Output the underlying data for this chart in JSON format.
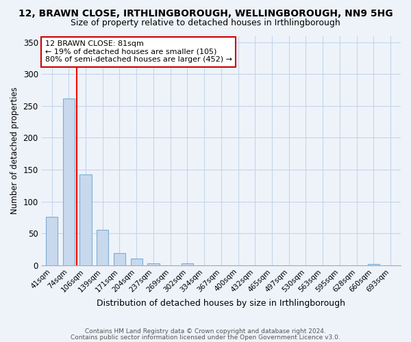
{
  "title_line1": "12, BRAWN CLOSE, IRTHLINGBOROUGH, WELLINGBOROUGH, NN9 5HG",
  "title_line2": "Size of property relative to detached houses in Irthlingborough",
  "xlabel": "Distribution of detached houses by size in Irthlingborough",
  "ylabel": "Number of detached properties",
  "bar_labels": [
    "41sqm",
    "74sqm",
    "106sqm",
    "139sqm",
    "171sqm",
    "204sqm",
    "237sqm",
    "269sqm",
    "302sqm",
    "334sqm",
    "367sqm",
    "400sqm",
    "432sqm",
    "465sqm",
    "497sqm",
    "530sqm",
    "563sqm",
    "595sqm",
    "628sqm",
    "660sqm",
    "693sqm"
  ],
  "bar_values": [
    76,
    262,
    143,
    55,
    19,
    10,
    3,
    0,
    3,
    0,
    0,
    0,
    0,
    0,
    0,
    0,
    0,
    0,
    0,
    2,
    0
  ],
  "bar_color": "#c8d8ed",
  "bar_edge_color": "#7bafd4",
  "ylim": [
    0,
    360
  ],
  "yticks": [
    0,
    50,
    100,
    150,
    200,
    250,
    300,
    350
  ],
  "red_line_x": 1.47,
  "annotation_title": "12 BRAWN CLOSE: 81sqm",
  "annotation_line1": "← 19% of detached houses are smaller (105)",
  "annotation_line2": "80% of semi-detached houses are larger (452) →",
  "annotation_box_color": "#ffffff",
  "annotation_box_edge_color": "#cc0000",
  "footer_line1": "Contains HM Land Registry data © Crown copyright and database right 2024.",
  "footer_line2": "Contains public sector information licensed under the Open Government Licence v3.0.",
  "background_color": "#eef3fa",
  "plot_bg_color": "#eef3fa",
  "grid_color": "#c5d5e8"
}
